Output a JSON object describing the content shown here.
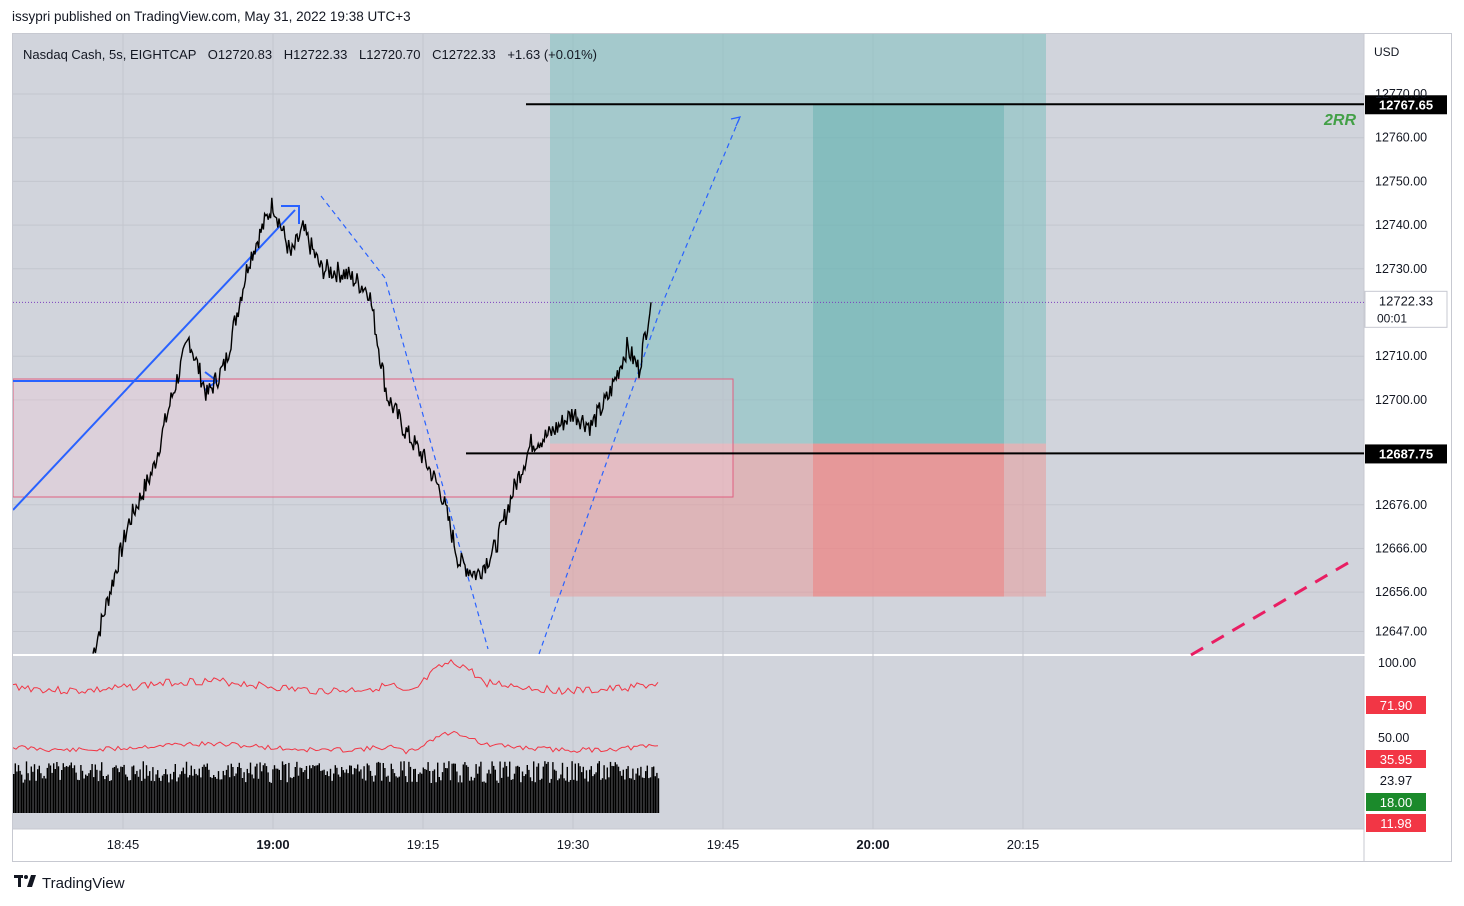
{
  "publisher_line": "issypri published on TradingView.com, May 31, 2022 19:38 UTC+3",
  "footer": {
    "brand": "TradingView",
    "logo_icon": "tradingview-logo-icon"
  },
  "chart_data": {
    "type": "candlestick",
    "legend": {
      "symbol": "Nasdaq Cash, 5s, EIGHTCAP",
      "open": "O12720.83",
      "high": "H12722.33",
      "low": "L12720.70",
      "close": "C12722.33",
      "change": "+1.63 (+0.01%)"
    },
    "currency": "USD",
    "price_axis_ticks": [
      12770.0,
      12760.0,
      12750.0,
      12740.0,
      12730.0,
      12710.0,
      12700.0,
      12676.0,
      12666.0,
      12656.0,
      12647.0
    ],
    "price_axis_tick_labels": [
      "12770.00",
      "12760.00",
      "12750.00",
      "12740.00",
      "12730.00",
      "12710.00",
      "12700.00",
      "12676.00",
      "12666.00",
      "12656.00",
      "12647.00"
    ],
    "time_axis_ticks": [
      {
        "label": "18:45",
        "bold": false
      },
      {
        "label": "19:00",
        "bold": true
      },
      {
        "label": "19:15",
        "bold": false
      },
      {
        "label": "19:30",
        "bold": false
      },
      {
        "label": "19:45",
        "bold": false
      },
      {
        "label": "20:00",
        "bold": true
      },
      {
        "label": "20:15",
        "bold": false
      }
    ],
    "last_price": {
      "value": 12722.33,
      "label": "12722.33",
      "countdown": "00:01"
    },
    "horizontal_lines": [
      {
        "value": 12767.65,
        "label": "12767.65",
        "color": "#000000"
      },
      {
        "value": 12687.75,
        "label": "12687.75",
        "color": "#000000"
      }
    ],
    "annotation": {
      "text": "2RR",
      "color": "#43a047"
    },
    "price_path": [
      [
        18.7,
        12642
      ],
      [
        18.76,
        12672
      ],
      [
        18.8,
        12684
      ],
      [
        18.83,
        12700
      ],
      [
        18.86,
        12714
      ],
      [
        18.89,
        12701
      ],
      [
        18.92,
        12708
      ],
      [
        18.96,
        12732
      ],
      [
        19.0,
        12745
      ],
      [
        19.03,
        12733
      ],
      [
        19.05,
        12739
      ],
      [
        19.08,
        12730
      ],
      [
        19.12,
        12729
      ],
      [
        19.16,
        12725
      ],
      [
        19.19,
        12701
      ],
      [
        19.22,
        12693
      ],
      [
        19.25,
        12687
      ],
      [
        19.28,
        12679
      ],
      [
        19.31,
        12663
      ],
      [
        19.34,
        12660
      ],
      [
        19.37,
        12666
      ],
      [
        19.4,
        12679
      ],
      [
        19.43,
        12690
      ],
      [
        19.46,
        12692
      ],
      [
        19.5,
        12697
      ],
      [
        19.53,
        12694
      ],
      [
        19.56,
        12701
      ],
      [
        19.59,
        12712
      ],
      [
        19.61,
        12707
      ],
      [
        19.63,
        12722.33
      ]
    ],
    "oscillators": {
      "scale_ticks": [
        100.0,
        50.0
      ],
      "scale_labels": [
        "100.00",
        "50.00"
      ],
      "values": [
        {
          "label": "71.90",
          "bg": "#f23645",
          "fg": "#ffffff"
        },
        {
          "label": "35.95",
          "bg": "#f23645",
          "fg": "#ffffff"
        },
        {
          "label": "23.97",
          "bg": "#ffffff",
          "fg": "#131722"
        },
        {
          "label": "18.00",
          "bg": "#1b8a2b",
          "fg": "#ffffff"
        },
        {
          "label": "11.98",
          "bg": "#f23645",
          "fg": "#ffffff"
        }
      ]
    },
    "position_tool": {
      "entry": 12690.0,
      "target": 12767.65,
      "stop": 12655.0,
      "profit_color": "#7fbfbf",
      "loss_color": "#e89a9a"
    },
    "colors": {
      "background": "#d1d4dc",
      "accent_blue": "#2962ff",
      "candles": "#000000",
      "rsi": "#f23645"
    }
  }
}
